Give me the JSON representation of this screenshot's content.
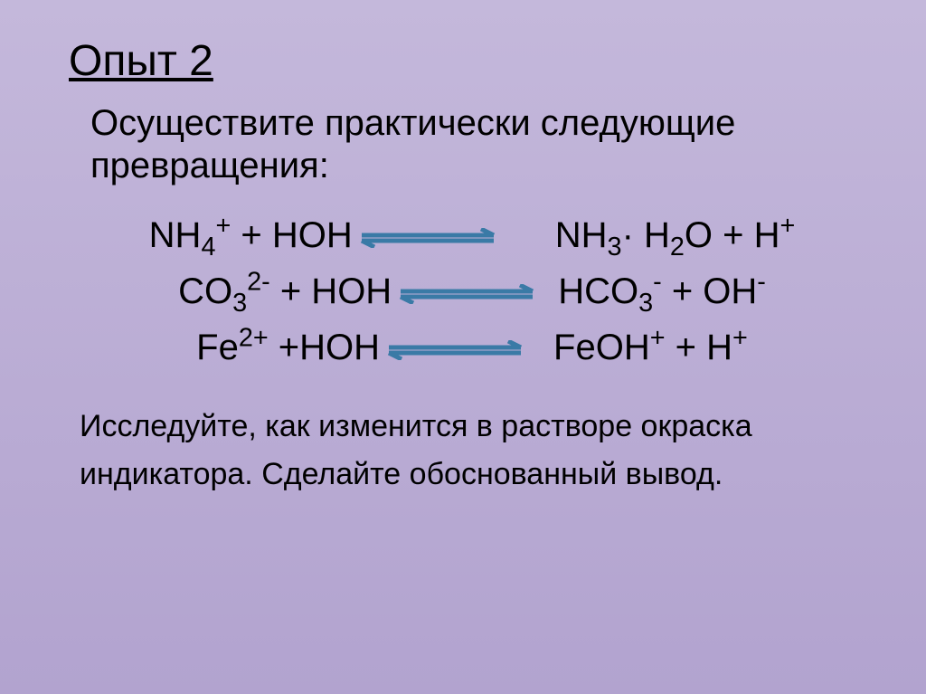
{
  "colors": {
    "bg_top": "#c4b8db",
    "bg_bottom": "#b2a3cf",
    "text": "#000000",
    "arrow": "#3a7aa6"
  },
  "title": "Опыт 2",
  "intro_line1": " Осуществите практически следующие",
  "intro_line2": "превращения:",
  "arrow_svg": {
    "width": 150,
    "height": 22,
    "stroke_width": 5
  },
  "equations": [
    {
      "lhs_html": "NH<sub>4</sub><sup>+</sup> + HOH",
      "gap": 58,
      "rhs_html": "NH<sub>3</sub>· H<sub>2</sub>O + H<sup>+</sup>"
    },
    {
      "lhs_html": "CO<sub>3</sub><sup>2-</sup> + HOH",
      "gap": 18,
      "rhs_html": "HCO<sub>3</sub><sup>-</sup> + OH<sup>-</sup>"
    },
    {
      "lhs_html": "Fe<sup>2+</sup> +HOH",
      "gap": 26,
      "rhs_html": "FeOH<sup>+</sup> + H<sup>+</sup>"
    }
  ],
  "outro_line1": "Исследуйте, как изменится в растворе окраска",
  "outro_line2": "индикатора. Сделайте обоснованный вывод."
}
